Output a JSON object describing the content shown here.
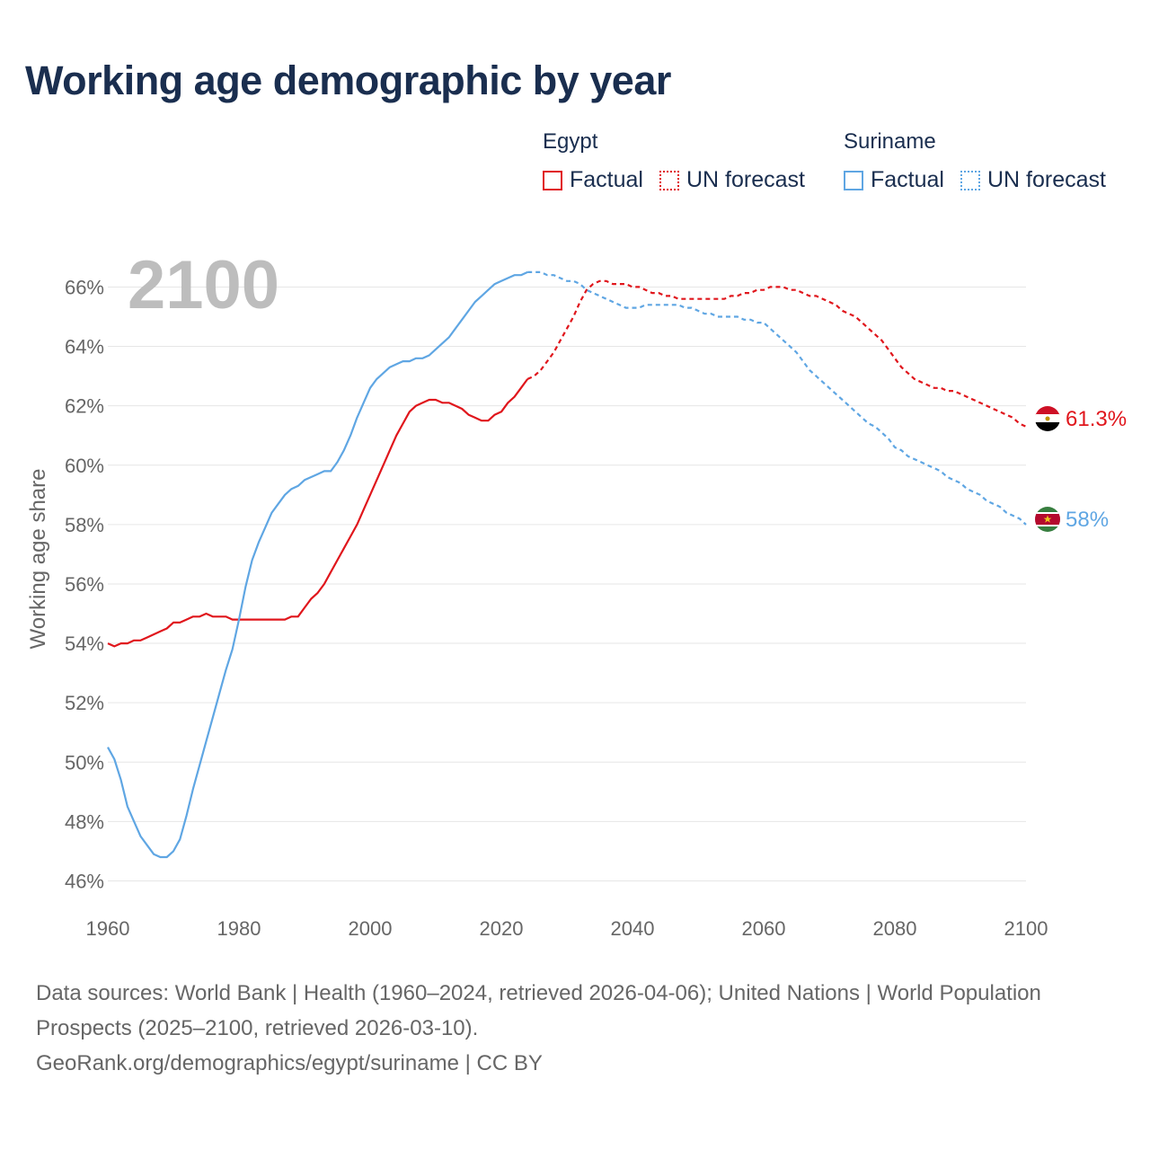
{
  "title": "Working age demographic by year",
  "legend": {
    "groups": [
      {
        "name": "Egypt",
        "color": "#e0161c",
        "items": [
          {
            "label": "Factual",
            "style": "solid"
          },
          {
            "label": "UN forecast",
            "style": "dotted"
          }
        ]
      },
      {
        "name": "Suriname",
        "color": "#5fa6e3",
        "items": [
          {
            "label": "Factual",
            "style": "solid"
          },
          {
            "label": "UN forecast",
            "style": "dotted"
          }
        ]
      }
    ]
  },
  "footer": {
    "sources": "Data sources: World Bank | Health (1960–2024, retrieved 2026-04-06); United Nations | World Population Prospects (2025–2100, retrieved 2026-03-10).",
    "credit": "GeoRank.org/demographics/egypt/suriname | CC BY"
  },
  "chart_data": {
    "type": "line",
    "year_label": "2100",
    "ylabel": "Working age share",
    "xlim": [
      1960,
      2100
    ],
    "ylim": [
      45.5,
      66.8
    ],
    "x_ticks": [
      "1960",
      "1980",
      "2000",
      "2020",
      "2040",
      "2060",
      "2080",
      "2100"
    ],
    "y_ticks": [
      "46%",
      "48%",
      "50%",
      "52%",
      "54%",
      "56%",
      "58%",
      "60%",
      "62%",
      "64%",
      "66%"
    ],
    "grid": true,
    "series": [
      {
        "name": "Egypt",
        "color": "#e0161c",
        "factual_end": 2024,
        "end_label": "61.3%",
        "points": [
          [
            1960,
            54.0
          ],
          [
            1961,
            53.9
          ],
          [
            1962,
            54.0
          ],
          [
            1963,
            54.0
          ],
          [
            1964,
            54.1
          ],
          [
            1965,
            54.1
          ],
          [
            1966,
            54.2
          ],
          [
            1967,
            54.3
          ],
          [
            1968,
            54.4
          ],
          [
            1969,
            54.5
          ],
          [
            1970,
            54.7
          ],
          [
            1971,
            54.7
          ],
          [
            1972,
            54.8
          ],
          [
            1973,
            54.9
          ],
          [
            1974,
            54.9
          ],
          [
            1975,
            55.0
          ],
          [
            1976,
            54.9
          ],
          [
            1977,
            54.9
          ],
          [
            1978,
            54.9
          ],
          [
            1979,
            54.8
          ],
          [
            1980,
            54.8
          ],
          [
            1981,
            54.8
          ],
          [
            1982,
            54.8
          ],
          [
            1983,
            54.8
          ],
          [
            1984,
            54.8
          ],
          [
            1985,
            54.8
          ],
          [
            1986,
            54.8
          ],
          [
            1987,
            54.8
          ],
          [
            1988,
            54.9
          ],
          [
            1989,
            54.9
          ],
          [
            1990,
            55.2
          ],
          [
            1991,
            55.5
          ],
          [
            1992,
            55.7
          ],
          [
            1993,
            56.0
          ],
          [
            1994,
            56.4
          ],
          [
            1995,
            56.8
          ],
          [
            1996,
            57.2
          ],
          [
            1997,
            57.6
          ],
          [
            1998,
            58.0
          ],
          [
            1999,
            58.5
          ],
          [
            2000,
            59.0
          ],
          [
            2001,
            59.5
          ],
          [
            2002,
            60.0
          ],
          [
            2003,
            60.5
          ],
          [
            2004,
            61.0
          ],
          [
            2005,
            61.4
          ],
          [
            2006,
            61.8
          ],
          [
            2007,
            62.0
          ],
          [
            2008,
            62.1
          ],
          [
            2009,
            62.2
          ],
          [
            2010,
            62.2
          ],
          [
            2011,
            62.1
          ],
          [
            2012,
            62.1
          ],
          [
            2013,
            62.0
          ],
          [
            2014,
            61.9
          ],
          [
            2015,
            61.7
          ],
          [
            2016,
            61.6
          ],
          [
            2017,
            61.5
          ],
          [
            2018,
            61.5
          ],
          [
            2019,
            61.7
          ],
          [
            2020,
            61.8
          ],
          [
            2021,
            62.1
          ],
          [
            2022,
            62.3
          ],
          [
            2023,
            62.6
          ],
          [
            2024,
            62.9
          ],
          [
            2025,
            63.0
          ],
          [
            2026,
            63.2
          ],
          [
            2027,
            63.5
          ],
          [
            2028,
            63.8
          ],
          [
            2029,
            64.2
          ],
          [
            2030,
            64.6
          ],
          [
            2031,
            65.0
          ],
          [
            2032,
            65.5
          ],
          [
            2033,
            65.9
          ],
          [
            2034,
            66.1
          ],
          [
            2035,
            66.2
          ],
          [
            2036,
            66.2
          ],
          [
            2037,
            66.1
          ],
          [
            2038,
            66.1
          ],
          [
            2039,
            66.1
          ],
          [
            2040,
            66.0
          ],
          [
            2041,
            66.0
          ],
          [
            2042,
            65.9
          ],
          [
            2043,
            65.8
          ],
          [
            2044,
            65.8
          ],
          [
            2045,
            65.7
          ],
          [
            2046,
            65.7
          ],
          [
            2047,
            65.6
          ],
          [
            2048,
            65.6
          ],
          [
            2049,
            65.6
          ],
          [
            2050,
            65.6
          ],
          [
            2051,
            65.6
          ],
          [
            2052,
            65.6
          ],
          [
            2053,
            65.6
          ],
          [
            2054,
            65.6
          ],
          [
            2055,
            65.7
          ],
          [
            2056,
            65.7
          ],
          [
            2057,
            65.8
          ],
          [
            2058,
            65.8
          ],
          [
            2059,
            65.9
          ],
          [
            2060,
            65.9
          ],
          [
            2061,
            66.0
          ],
          [
            2062,
            66.0
          ],
          [
            2063,
            66.0
          ],
          [
            2064,
            65.9
          ],
          [
            2065,
            65.9
          ],
          [
            2066,
            65.8
          ],
          [
            2067,
            65.7
          ],
          [
            2068,
            65.7
          ],
          [
            2069,
            65.6
          ],
          [
            2070,
            65.5
          ],
          [
            2071,
            65.4
          ],
          [
            2072,
            65.2
          ],
          [
            2073,
            65.1
          ],
          [
            2074,
            65.0
          ],
          [
            2075,
            64.8
          ],
          [
            2076,
            64.6
          ],
          [
            2077,
            64.4
          ],
          [
            2078,
            64.2
          ],
          [
            2079,
            63.9
          ],
          [
            2080,
            63.6
          ],
          [
            2081,
            63.3
          ],
          [
            2082,
            63.1
          ],
          [
            2083,
            62.9
          ],
          [
            2084,
            62.8
          ],
          [
            2085,
            62.7
          ],
          [
            2086,
            62.6
          ],
          [
            2087,
            62.6
          ],
          [
            2088,
            62.5
          ],
          [
            2089,
            62.5
          ],
          [
            2090,
            62.4
          ],
          [
            2091,
            62.3
          ],
          [
            2092,
            62.2
          ],
          [
            2093,
            62.1
          ],
          [
            2094,
            62.0
          ],
          [
            2095,
            61.9
          ],
          [
            2096,
            61.8
          ],
          [
            2097,
            61.7
          ],
          [
            2098,
            61.6
          ],
          [
            2099,
            61.4
          ],
          [
            2100,
            61.3
          ]
        ]
      },
      {
        "name": "Suriname",
        "color": "#5fa6e3",
        "factual_end": 2024,
        "end_label": "58%",
        "points": [
          [
            1960,
            50.5
          ],
          [
            1961,
            50.1
          ],
          [
            1962,
            49.4
          ],
          [
            1963,
            48.5
          ],
          [
            1964,
            48.0
          ],
          [
            1965,
            47.5
          ],
          [
            1966,
            47.2
          ],
          [
            1967,
            46.9
          ],
          [
            1968,
            46.8
          ],
          [
            1969,
            46.8
          ],
          [
            1970,
            47.0
          ],
          [
            1971,
            47.4
          ],
          [
            1972,
            48.2
          ],
          [
            1973,
            49.1
          ],
          [
            1974,
            49.9
          ],
          [
            1975,
            50.7
          ],
          [
            1976,
            51.5
          ],
          [
            1977,
            52.3
          ],
          [
            1978,
            53.1
          ],
          [
            1979,
            53.8
          ],
          [
            1980,
            54.8
          ],
          [
            1981,
            55.9
          ],
          [
            1982,
            56.8
          ],
          [
            1983,
            57.4
          ],
          [
            1984,
            57.9
          ],
          [
            1985,
            58.4
          ],
          [
            1986,
            58.7
          ],
          [
            1987,
            59.0
          ],
          [
            1988,
            59.2
          ],
          [
            1989,
            59.3
          ],
          [
            1990,
            59.5
          ],
          [
            1991,
            59.6
          ],
          [
            1992,
            59.7
          ],
          [
            1993,
            59.8
          ],
          [
            1994,
            59.8
          ],
          [
            1995,
            60.1
          ],
          [
            1996,
            60.5
          ],
          [
            1997,
            61.0
          ],
          [
            1998,
            61.6
          ],
          [
            1999,
            62.1
          ],
          [
            2000,
            62.6
          ],
          [
            2001,
            62.9
          ],
          [
            2002,
            63.1
          ],
          [
            2003,
            63.3
          ],
          [
            2004,
            63.4
          ],
          [
            2005,
            63.5
          ],
          [
            2006,
            63.5
          ],
          [
            2007,
            63.6
          ],
          [
            2008,
            63.6
          ],
          [
            2009,
            63.7
          ],
          [
            2010,
            63.9
          ],
          [
            2011,
            64.1
          ],
          [
            2012,
            64.3
          ],
          [
            2013,
            64.6
          ],
          [
            2014,
            64.9
          ],
          [
            2015,
            65.2
          ],
          [
            2016,
            65.5
          ],
          [
            2017,
            65.7
          ],
          [
            2018,
            65.9
          ],
          [
            2019,
            66.1
          ],
          [
            2020,
            66.2
          ],
          [
            2021,
            66.3
          ],
          [
            2022,
            66.4
          ],
          [
            2023,
            66.4
          ],
          [
            2024,
            66.5
          ],
          [
            2025,
            66.5
          ],
          [
            2026,
            66.5
          ],
          [
            2027,
            66.4
          ],
          [
            2028,
            66.4
          ],
          [
            2029,
            66.3
          ],
          [
            2030,
            66.2
          ],
          [
            2031,
            66.2
          ],
          [
            2032,
            66.1
          ],
          [
            2033,
            65.9
          ],
          [
            2034,
            65.8
          ],
          [
            2035,
            65.7
          ],
          [
            2036,
            65.6
          ],
          [
            2037,
            65.5
          ],
          [
            2038,
            65.4
          ],
          [
            2039,
            65.3
          ],
          [
            2040,
            65.3
          ],
          [
            2041,
            65.3
          ],
          [
            2042,
            65.4
          ],
          [
            2043,
            65.4
          ],
          [
            2044,
            65.4
          ],
          [
            2045,
            65.4
          ],
          [
            2046,
            65.4
          ],
          [
            2047,
            65.4
          ],
          [
            2048,
            65.3
          ],
          [
            2049,
            65.3
          ],
          [
            2050,
            65.2
          ],
          [
            2051,
            65.1
          ],
          [
            2052,
            65.1
          ],
          [
            2053,
            65.0
          ],
          [
            2054,
            65.0
          ],
          [
            2055,
            65.0
          ],
          [
            2056,
            65.0
          ],
          [
            2057,
            64.9
          ],
          [
            2058,
            64.9
          ],
          [
            2059,
            64.8
          ],
          [
            2060,
            64.8
          ],
          [
            2061,
            64.6
          ],
          [
            2062,
            64.4
          ],
          [
            2063,
            64.2
          ],
          [
            2064,
            64.0
          ],
          [
            2065,
            63.8
          ],
          [
            2066,
            63.5
          ],
          [
            2067,
            63.2
          ],
          [
            2068,
            63.0
          ],
          [
            2069,
            62.8
          ],
          [
            2070,
            62.6
          ],
          [
            2071,
            62.4
          ],
          [
            2072,
            62.2
          ],
          [
            2073,
            62.0
          ],
          [
            2074,
            61.8
          ],
          [
            2075,
            61.6
          ],
          [
            2076,
            61.4
          ],
          [
            2077,
            61.3
          ],
          [
            2078,
            61.1
          ],
          [
            2079,
            60.9
          ],
          [
            2080,
            60.6
          ],
          [
            2081,
            60.5
          ],
          [
            2082,
            60.3
          ],
          [
            2083,
            60.2
          ],
          [
            2084,
            60.1
          ],
          [
            2085,
            60.0
          ],
          [
            2086,
            59.9
          ],
          [
            2087,
            59.8
          ],
          [
            2088,
            59.6
          ],
          [
            2089,
            59.5
          ],
          [
            2090,
            59.4
          ],
          [
            2091,
            59.2
          ],
          [
            2092,
            59.1
          ],
          [
            2093,
            59.0
          ],
          [
            2094,
            58.8
          ],
          [
            2095,
            58.7
          ],
          [
            2096,
            58.6
          ],
          [
            2097,
            58.4
          ],
          [
            2098,
            58.3
          ],
          [
            2099,
            58.2
          ],
          [
            2100,
            58.0
          ]
        ]
      }
    ]
  }
}
